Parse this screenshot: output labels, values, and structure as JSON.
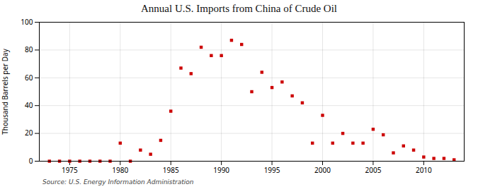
{
  "chart_data": {
    "type": "scatter",
    "title": "Annual U.S. Imports from China of Crude Oil",
    "ylabel": "Thousand Barrels per Day",
    "source": "Source: U.S. Energy Information Administration",
    "x": [
      1973,
      1974,
      1975,
      1976,
      1977,
      1978,
      1979,
      1980,
      1981,
      1982,
      1983,
      1984,
      1985,
      1986,
      1987,
      1988,
      1989,
      1990,
      1991,
      1992,
      1993,
      1994,
      1995,
      1996,
      1997,
      1998,
      1999,
      2000,
      2001,
      2002,
      2003,
      2004,
      2005,
      2006,
      2007,
      2008,
      2009,
      2010,
      2011,
      2012,
      2013
    ],
    "values": [
      0,
      0,
      0,
      0,
      0,
      0,
      0,
      13,
      0,
      8,
      5,
      15,
      36,
      67,
      63,
      82,
      76,
      76,
      87,
      84,
      50,
      64,
      53,
      57,
      47,
      42,
      13,
      33,
      13,
      20,
      13,
      13,
      23,
      19,
      6,
      11,
      8,
      3,
      2,
      2,
      1
    ],
    "color": "#cc0000",
    "marker": "square",
    "xlim": [
      1972,
      2014
    ],
    "xticks": [
      1975,
      1980,
      1985,
      1990,
      1995,
      2000,
      2005,
      2010
    ],
    "ylim": [
      0,
      100
    ],
    "yticks": [
      0,
      20,
      40,
      60,
      80,
      100
    ],
    "grid": true
  }
}
